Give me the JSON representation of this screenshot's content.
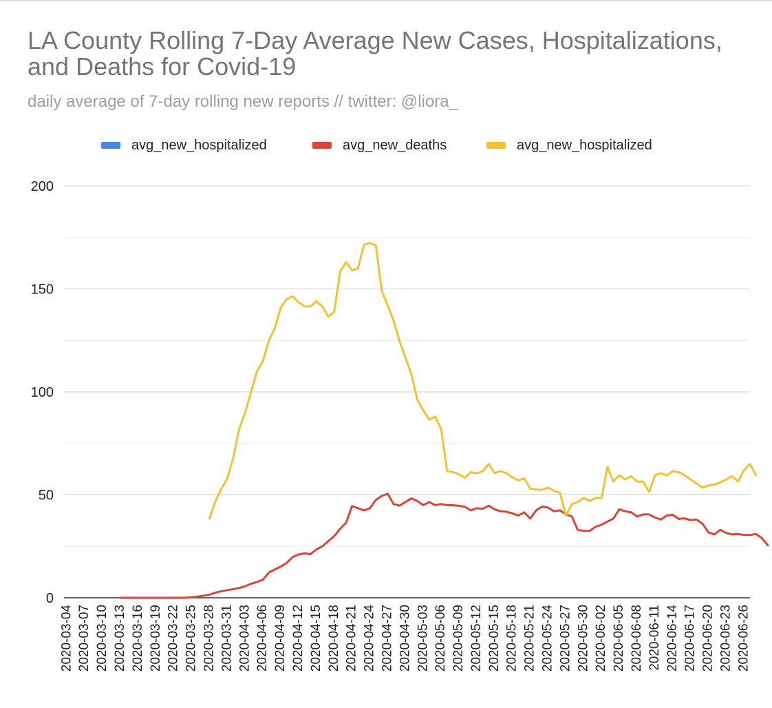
{
  "chart_data": {
    "type": "line",
    "title": "LA County Rolling 7-Day Average New Cases, Hospitalizations, and Deaths for Covid-19",
    "subtitle": "daily average of 7-day rolling new reports // twitter: @liora_",
    "xlabel": "",
    "ylabel": "",
    "ylim": [
      0,
      200
    ],
    "yticks": [
      0,
      50,
      100,
      150,
      200
    ],
    "grid": true,
    "legend_position": "top-center",
    "x_start": "2020-03-04",
    "x_end": "2020-06-27",
    "xtick_labels": [
      "2020-03-04",
      "2020-03-07",
      "2020-03-10",
      "2020-03-13",
      "2020-03-16",
      "2020-03-19",
      "2020-03-22",
      "2020-03-25",
      "2020-03-28",
      "2020-03-31",
      "2020-04-03",
      "2020-04-06",
      "2020-04-09",
      "2020-04-12",
      "2020-04-15",
      "2020-04-18",
      "2020-04-21",
      "2020-04-24",
      "2020-04-27",
      "2020-04-30",
      "2020-05-03",
      "2020-05-06",
      "2020-05-09",
      "2020-05-12",
      "2020-05-15",
      "2020-05-18",
      "2020-05-21",
      "2020-05-24",
      "2020-05-27",
      "2020-05-30",
      "2020-06-02",
      "2020-06-05",
      "2020-06-08",
      "2020-06-11",
      "2020-06-14",
      "2020-06-17",
      "2020-06-20",
      "2020-06-23",
      "2020-06-26"
    ],
    "series": [
      {
        "name": "avg_new_hospitalized",
        "color": "#4a86e8",
        "start_index": 0,
        "values": []
      },
      {
        "name": "avg_new_deaths",
        "color": "#db4437",
        "start_index": 9,
        "values": [
          0,
          0,
          0,
          0,
          0,
          0,
          0,
          0,
          0,
          0,
          0,
          0.1,
          0.3,
          0.6,
          1,
          1.5,
          2.5,
          3.2,
          3.7,
          4.2,
          4.8,
          5.6,
          6.8,
          7.7,
          8.8,
          12.3,
          13.8,
          15.2,
          17,
          19.8,
          21,
          21.6,
          21.2,
          23.5,
          25,
          27.5,
          30,
          33.5,
          36.5,
          44.5,
          43.5,
          42.5,
          43.5,
          47.5,
          49.5,
          50.5,
          45.5,
          44.8,
          46.5,
          48.3,
          47,
          45,
          46.5,
          45,
          45.5,
          45,
          45,
          44.7,
          44.2,
          42.5,
          43.5,
          43.2,
          44.7,
          43,
          42,
          41.8,
          41,
          40,
          41.5,
          38.5,
          42.5,
          44.3,
          43.8,
          42,
          42.5,
          40.5,
          39.5,
          33,
          32.5,
          32.5,
          34.5,
          35.5,
          37,
          38.5,
          43,
          42,
          41.5,
          39.5,
          40.5,
          40.5,
          39,
          38,
          40,
          40.3,
          38.3,
          38.6,
          37.7,
          38,
          36,
          31.8,
          30.8,
          33,
          31.5,
          30.8,
          31,
          30.5,
          30.5,
          31,
          29,
          25.5
        ]
      },
      {
        "name": "avg_new_hospitalized",
        "color": "#f1c232",
        "start_index": 24,
        "values": [
          38.5,
          47,
          53,
          58,
          68,
          82,
          90,
          100,
          110,
          115,
          125,
          131,
          141,
          145,
          146.5,
          143.5,
          141.5,
          141.5,
          144,
          141.5,
          136.5,
          139,
          158.5,
          163,
          159,
          160,
          171.5,
          172.3,
          171.2,
          149,
          142,
          134.5,
          124.5,
          116.5,
          108.5,
          96,
          91,
          86.5,
          88,
          82,
          61.5,
          61,
          60,
          58.3,
          61,
          60.5,
          61.5,
          65,
          60.5,
          61.5,
          60.5,
          58.5,
          57,
          58,
          53,
          52.5,
          52.5,
          53.5,
          52,
          51,
          40,
          45.5,
          46.5,
          48.5,
          47,
          48.5,
          48.5,
          63.5,
          56.5,
          59.5,
          57.5,
          59,
          56.5,
          56.5,
          51.5,
          59.5,
          60.5,
          59.5,
          61.5,
          61,
          59.5,
          57.5,
          55.5,
          53.5,
          54.5,
          55,
          56,
          57.5,
          59,
          56.5,
          62,
          65,
          59.5
        ]
      }
    ]
  }
}
